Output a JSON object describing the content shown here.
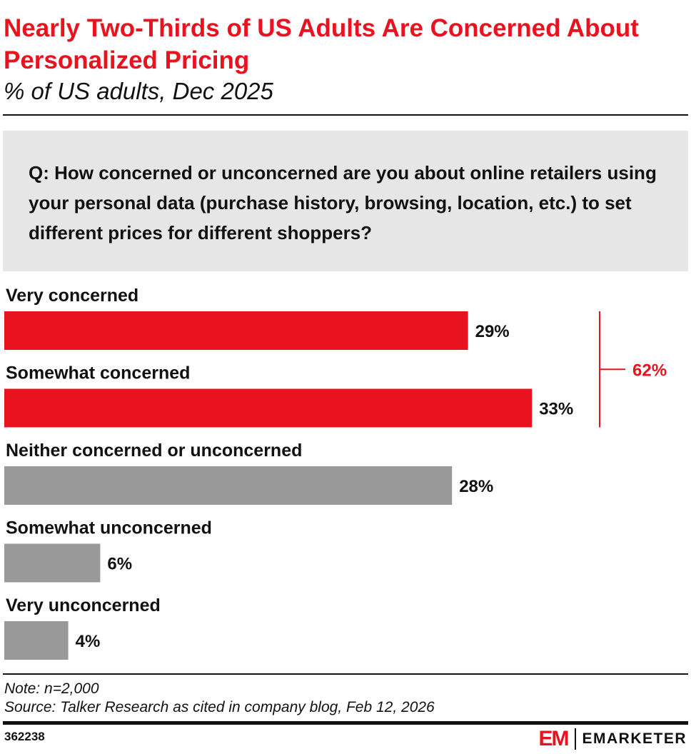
{
  "title": "Nearly Two-Thirds of US Adults Are Concerned About Personalized Pricing",
  "subtitle": "% of US adults, Dec 2025",
  "question": "Q: How concerned or unconcerned are you about online retailers using your personal data (purchase history, browsing, location, etc.) to set different prices for different shoppers?",
  "chart_data": {
    "type": "bar",
    "orientation": "horizontal",
    "categories": [
      "Very concerned",
      "Somewhat concerned",
      "Neither concerned or unconcerned",
      "Somewhat unconcerned",
      "Very unconcerned"
    ],
    "values": [
      29,
      33,
      28,
      6,
      4
    ],
    "value_labels": [
      "29%",
      "33%",
      "28%",
      "6%",
      "4%"
    ],
    "bar_colors": [
      "#e8131f",
      "#e8131f",
      "#999999",
      "#999999",
      "#999999"
    ],
    "bracket": {
      "label": "62%",
      "covers": [
        0,
        1
      ],
      "color": "#e8131f"
    },
    "xlim": [
      0,
      40
    ]
  },
  "note": "Note: n=2,000",
  "source": "Source: Talker Research as cited in company blog, Feb 12, 2026",
  "chart_id": "362238",
  "brand": {
    "mark": "EM",
    "name": "EMARKETER",
    "color": "#e8131f"
  }
}
